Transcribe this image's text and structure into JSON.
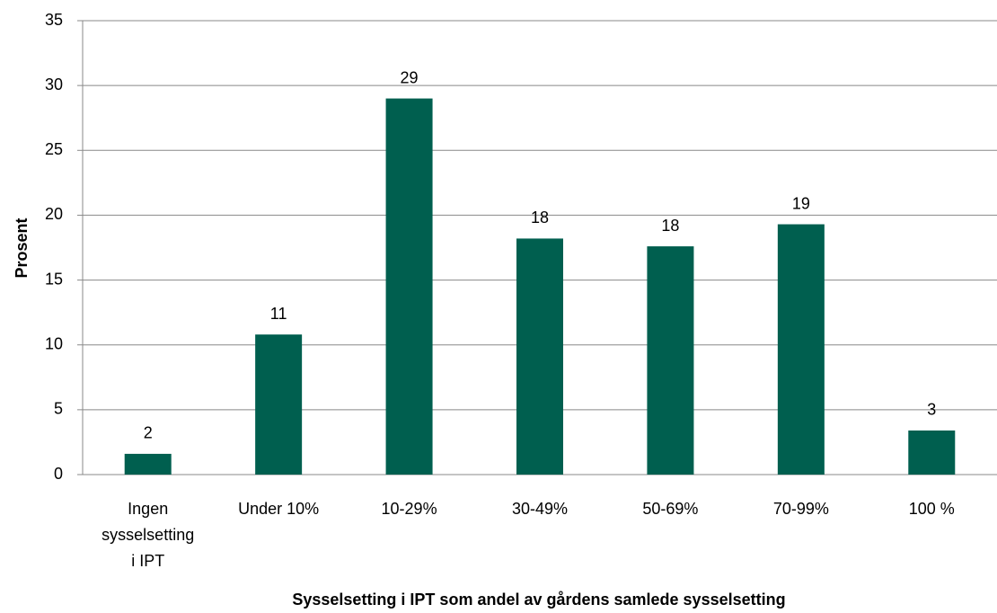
{
  "chart_data": {
    "type": "bar",
    "x_label": "Sysselsetting i IPT som andel av gårdens samlede sysselsetting",
    "y_label": "Prosent",
    "categories": [
      "Ingen\nsysselsetting\ni IPT",
      "Under 10%",
      "10-29%",
      "30-49%",
      "50-69%",
      "70-99%",
      "100 %"
    ],
    "values": [
      1.6,
      10.8,
      29,
      18.2,
      17.6,
      19.3,
      3.4
    ],
    "value_labels": [
      "2",
      "11",
      "29",
      "18",
      "18",
      "19",
      "3"
    ],
    "color": "#005f4f",
    "ylim": [
      0,
      35
    ],
    "yticks": [
      0,
      5,
      10,
      15,
      20,
      25,
      30,
      35
    ],
    "grid": true
  }
}
